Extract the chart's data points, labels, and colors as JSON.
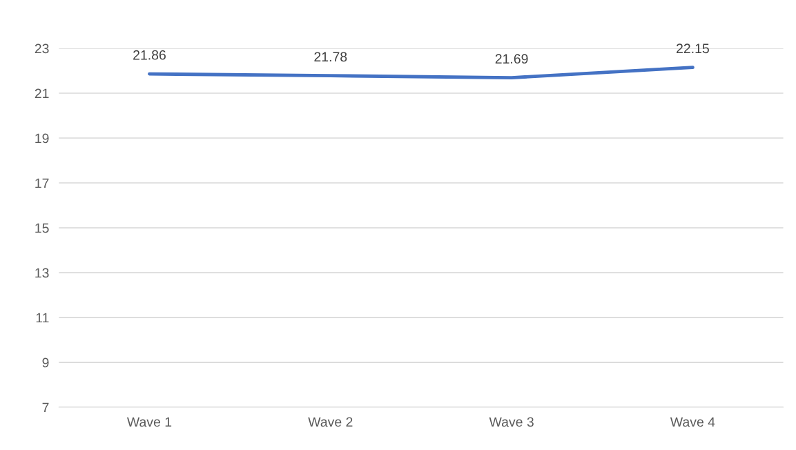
{
  "chart_data": {
    "type": "line",
    "categories": [
      "Wave 1",
      "Wave 2",
      "Wave 3",
      "Wave 4"
    ],
    "series": [
      {
        "color": "#4472c4",
        "values": [
          21.86,
          21.78,
          21.69,
          22.15
        ]
      }
    ],
    "ylim": [
      7,
      23
    ],
    "yticks": [
      7,
      9,
      11,
      13,
      15,
      17,
      19,
      21,
      23
    ],
    "grid": "y",
    "data_labels": true,
    "marker": "none",
    "line_style": "solid"
  }
}
